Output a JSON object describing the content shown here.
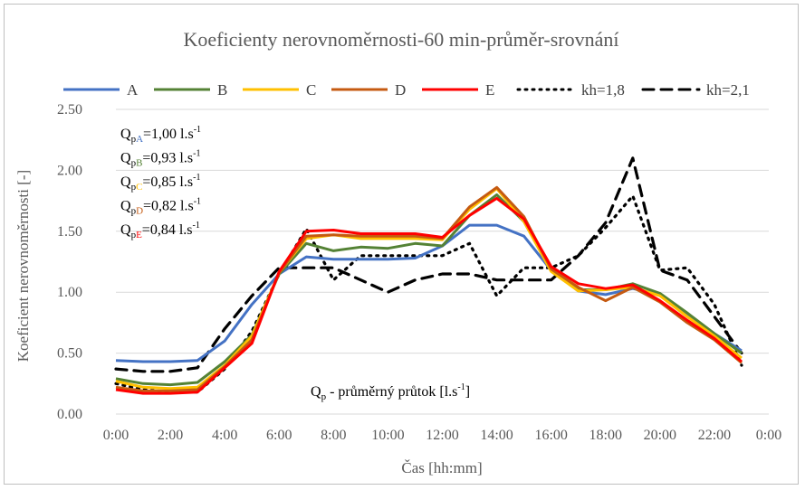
{
  "chart_data": {
    "type": "line",
    "title": "Koeficienty nerovnoměrnosti-60 min-průměr-srovnání",
    "xlabel": "Čas [hh:mm]",
    "ylabel": "Koeficient nerovnoměrnosti [-]",
    "ylim": [
      0,
      2.5
    ],
    "yticks": [
      "0.00",
      "0.50",
      "1.00",
      "1.50",
      "2.00",
      "2.50"
    ],
    "xticks": [
      "0:00",
      "2:00",
      "4:00",
      "6:00",
      "8:00",
      "10:00",
      "12:00",
      "14:00",
      "16:00",
      "18:00",
      "20:00",
      "22:00",
      "0:00"
    ],
    "grid": "horizontal",
    "legend_position": "top",
    "x_hours": [
      0,
      1,
      2,
      3,
      4,
      5,
      6,
      7,
      8,
      9,
      10,
      11,
      12,
      13,
      14,
      15,
      16,
      17,
      18,
      19,
      20,
      21,
      22,
      23
    ],
    "series": [
      {
        "name": "A",
        "color": "#4472c4",
        "dash": "solid",
        "values": [
          0.44,
          0.43,
          0.43,
          0.44,
          0.6,
          0.9,
          1.15,
          1.29,
          1.27,
          1.27,
          1.27,
          1.28,
          1.38,
          1.55,
          1.55,
          1.46,
          1.18,
          1.01,
          0.98,
          1.03,
          0.98,
          0.82,
          0.66,
          0.52
        ]
      },
      {
        "name": "B",
        "color": "#548235",
        "dash": "solid",
        "values": [
          0.29,
          0.25,
          0.24,
          0.26,
          0.43,
          0.65,
          1.15,
          1.4,
          1.34,
          1.37,
          1.36,
          1.4,
          1.38,
          1.63,
          1.8,
          1.58,
          1.18,
          1.02,
          1.02,
          1.07,
          0.99,
          0.83,
          0.66,
          0.5
        ]
      },
      {
        "name": "C",
        "color": "#ffc000",
        "dash": "solid",
        "values": [
          0.27,
          0.22,
          0.21,
          0.22,
          0.4,
          0.64,
          1.16,
          1.44,
          1.47,
          1.44,
          1.44,
          1.44,
          1.43,
          1.68,
          1.85,
          1.58,
          1.17,
          1.01,
          1.02,
          1.04,
          0.97,
          0.8,
          0.64,
          0.46
        ]
      },
      {
        "name": "D",
        "color": "#c55a11",
        "dash": "solid",
        "values": [
          0.22,
          0.19,
          0.19,
          0.2,
          0.39,
          0.61,
          1.16,
          1.46,
          1.47,
          1.46,
          1.46,
          1.46,
          1.44,
          1.7,
          1.86,
          1.62,
          1.19,
          1.04,
          0.93,
          1.04,
          0.92,
          0.75,
          0.61,
          0.42
        ]
      },
      {
        "name": "E",
        "color": "#ff0000",
        "dash": "solid",
        "values": [
          0.2,
          0.17,
          0.17,
          0.18,
          0.38,
          0.58,
          1.17,
          1.5,
          1.51,
          1.48,
          1.48,
          1.48,
          1.45,
          1.63,
          1.77,
          1.6,
          1.21,
          1.07,
          1.03,
          1.06,
          0.93,
          0.77,
          0.62,
          0.43
        ]
      },
      {
        "name": "kh=1,8",
        "color": "#000000",
        "dash": "dot",
        "values": [
          0.25,
          0.2,
          0.18,
          0.18,
          0.37,
          0.68,
          1.15,
          1.52,
          1.1,
          1.3,
          1.3,
          1.3,
          1.3,
          1.4,
          0.97,
          1.2,
          1.2,
          1.3,
          1.53,
          1.79,
          1.18,
          1.2,
          0.9,
          0.4
        ]
      },
      {
        "name": "kh=2,1",
        "color": "#000000",
        "dash": "dash",
        "values": [
          0.37,
          0.35,
          0.35,
          0.38,
          0.7,
          0.97,
          1.2,
          1.2,
          1.2,
          1.1,
          1.0,
          1.1,
          1.15,
          1.15,
          1.1,
          1.1,
          1.1,
          1.3,
          1.57,
          2.1,
          1.18,
          1.1,
          0.8,
          0.5
        ]
      }
    ],
    "legend_labels": [
      "A",
      "B",
      "C",
      "D",
      "E",
      "kh=1,8",
      "kh=2,1"
    ],
    "annotations": {
      "q_lines": [
        {
          "main": "Q",
          "sub": "pA",
          "value": "=1,00 l.s",
          "exp": "-1",
          "sub_color": "#4472c4"
        },
        {
          "main": "Q",
          "sub": "pB",
          "value": "=0,93 l.s",
          "exp": "-1",
          "sub_color": "#548235"
        },
        {
          "main": "Q",
          "sub": "pC",
          "value": "=0,85 l.s",
          "exp": "-1",
          "sub_color": "#ffc000"
        },
        {
          "main": "Q",
          "sub": "pD",
          "value": "=0,82 l.s",
          "exp": "-1",
          "sub_color": "#c55a11"
        },
        {
          "main": "Q",
          "sub": "pE",
          "value": "=0,84 l.s",
          "exp": "-1",
          "sub_color": "#ff0000"
        }
      ],
      "bottom_note": {
        "main": "Q",
        "sub": "p",
        "text": " - průměrný průtok [l.s",
        "exp": "-1",
        "end": "]"
      }
    }
  }
}
